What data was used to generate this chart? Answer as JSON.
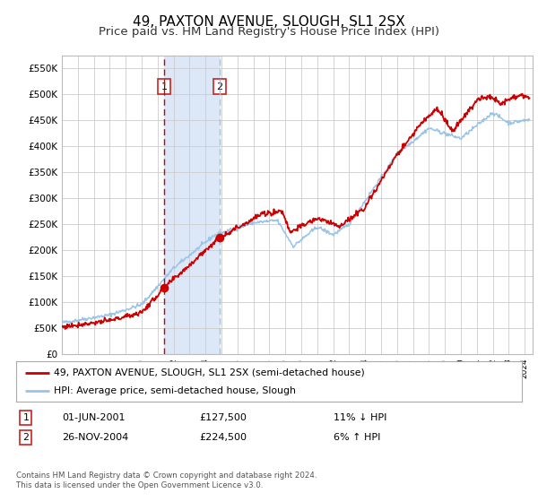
{
  "title": "49, PAXTON AVENUE, SLOUGH, SL1 2SX",
  "subtitle": "Price paid vs. HM Land Registry's House Price Index (HPI)",
  "legend_label_red": "49, PAXTON AVENUE, SLOUGH, SL1 2SX (semi-detached house)",
  "legend_label_blue": "HPI: Average price, semi-detached house, Slough",
  "transaction1_date": "01-JUN-2001",
  "transaction1_price": "£127,500",
  "transaction1_hpi": "11% ↓ HPI",
  "transaction1_year": 2001.42,
  "transaction1_value": 127500,
  "transaction2_date": "26-NOV-2004",
  "transaction2_price": "£224,500",
  "transaction2_hpi": "6% ↑ HPI",
  "transaction2_year": 2004.9,
  "transaction2_value": 224500,
  "footer": "Contains HM Land Registry data © Crown copyright and database right 2024.\nThis data is licensed under the Open Government Licence v3.0.",
  "ylim": [
    0,
    575000
  ],
  "xlim_start": 1995.0,
  "xlim_end": 2024.5,
  "background_color": "#ffffff",
  "grid_color": "#cccccc",
  "shade_color": "#dce8f8",
  "red_color": "#cc0000",
  "blue_color": "#99c4e8",
  "title_fontsize": 11,
  "subtitle_fontsize": 9.5
}
